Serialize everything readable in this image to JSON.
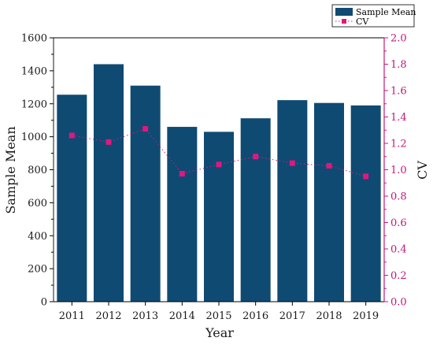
{
  "chart_data": {
    "type": "bar",
    "title": "",
    "xlabel": "Year",
    "ylabel": "Sample Mean",
    "y2label": "CV",
    "categories": [
      "2011",
      "2012",
      "2013",
      "2014",
      "2015",
      "2016",
      "2017",
      "2018",
      "2019"
    ],
    "ylim": [
      0,
      1600
    ],
    "y2lim": [
      0,
      2.0
    ],
    "yticks": [
      "0",
      "200",
      "400",
      "600",
      "800",
      "1000",
      "1200",
      "1400",
      "1600"
    ],
    "y2ticks": [
      "0.0",
      "0.2",
      "0.4",
      "0.6",
      "0.8",
      "1.0",
      "1.2",
      "1.4",
      "1.6",
      "1.8",
      "2.0"
    ],
    "series": [
      {
        "name": "Sample Mean",
        "type": "bar",
        "axis": "left",
        "color": "#0f4a73",
        "values": [
          1255,
          1440,
          1310,
          1060,
          1030,
          1112,
          1222,
          1205,
          1190
        ]
      },
      {
        "name": "CV",
        "type": "line",
        "axis": "right",
        "color": "#e0177f",
        "line_style": "dotted",
        "values": [
          1.26,
          1.21,
          1.31,
          0.97,
          1.04,
          1.1,
          1.05,
          1.03,
          0.95
        ]
      }
    ],
    "legend_position": "top-right",
    "grid": false,
    "axis_colors": {
      "left": "#1a1a1a",
      "right": "#c0187a"
    }
  }
}
